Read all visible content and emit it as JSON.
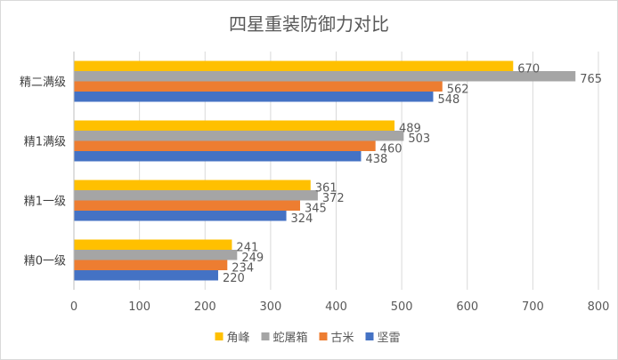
{
  "chart_data": {
    "type": "bar",
    "orientation": "horizontal",
    "title": "四星重装防御力对比",
    "categories": [
      "精二满级",
      "精1满级",
      "精1一级",
      "精0一级"
    ],
    "series": [
      {
        "name": "角峰",
        "color": "#FFC000",
        "values": [
          670,
          489,
          361,
          241
        ]
      },
      {
        "name": "蛇屠箱",
        "color": "#A5A5A5",
        "values": [
          765,
          503,
          372,
          249
        ]
      },
      {
        "name": "古米",
        "color": "#ED7D31",
        "values": [
          562,
          460,
          345,
          234
        ]
      },
      {
        "name": "坚雷",
        "color": "#4472C4",
        "values": [
          548,
          438,
          324,
          220
        ]
      }
    ],
    "xlim": [
      0,
      800
    ],
    "xticks": [
      0,
      100,
      200,
      300,
      400,
      500,
      600,
      700,
      800
    ],
    "xlabel": "",
    "ylabel": "",
    "grid": true,
    "legend": "bottom"
  }
}
